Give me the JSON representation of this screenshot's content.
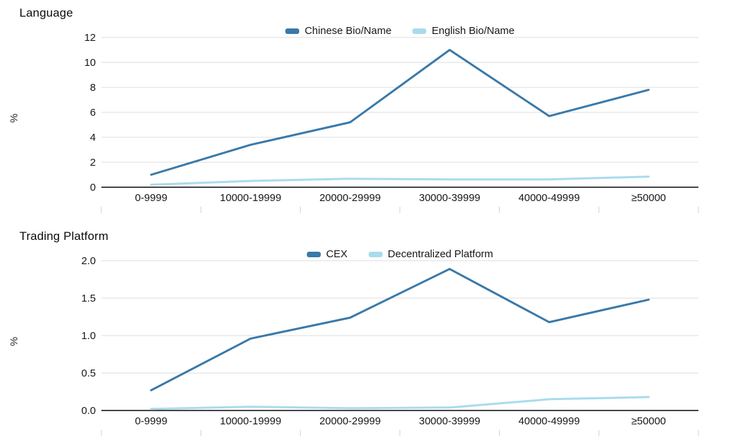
{
  "page": {
    "background": "#ffffff"
  },
  "colors": {
    "series_dark": "#3a79a9",
    "series_light": "#a9dbec",
    "grid": "#dcdcdc",
    "axis": "#444444",
    "boundary_tick": "#d0d0d0",
    "text": "#111111"
  },
  "chart_data": [
    {
      "type": "line",
      "title": "Language",
      "ylabel": "%",
      "xlabel": "",
      "legend_position": "top",
      "grid": true,
      "categories": [
        "0-9999",
        "10000-19999",
        "20000-29999",
        "30000-39999",
        "40000-49999",
        "≥50000"
      ],
      "y_ticks": [
        "0",
        "2",
        "4",
        "6",
        "8",
        "10",
        "12"
      ],
      "ylim": [
        0,
        12
      ],
      "series": [
        {
          "name": "Chinese Bio/Name",
          "color": "#3a79a9",
          "values": [
            1.0,
            3.4,
            5.2,
            11.0,
            5.7,
            7.8
          ]
        },
        {
          "name": "English Bio/Name",
          "color": "#a9dbec",
          "values": [
            0.2,
            0.5,
            0.68,
            0.63,
            0.63,
            0.85
          ]
        }
      ]
    },
    {
      "type": "line",
      "title": "Trading Platform",
      "ylabel": "%",
      "xlabel": "",
      "legend_position": "top",
      "grid": true,
      "categories": [
        "0-9999",
        "10000-19999",
        "20000-29999",
        "30000-39999",
        "40000-49999",
        "≥50000"
      ],
      "y_ticks": [
        "0.0",
        "0.5",
        "1.0",
        "1.5",
        "2.0"
      ],
      "ylim": [
        0,
        2
      ],
      "series": [
        {
          "name": "CEX",
          "color": "#3a79a9",
          "values": [
            0.27,
            0.96,
            1.24,
            1.89,
            1.18,
            1.48
          ]
        },
        {
          "name": "Decentralized Platform",
          "color": "#a9dbec",
          "values": [
            0.02,
            0.05,
            0.03,
            0.04,
            0.15,
            0.18
          ]
        }
      ]
    }
  ]
}
